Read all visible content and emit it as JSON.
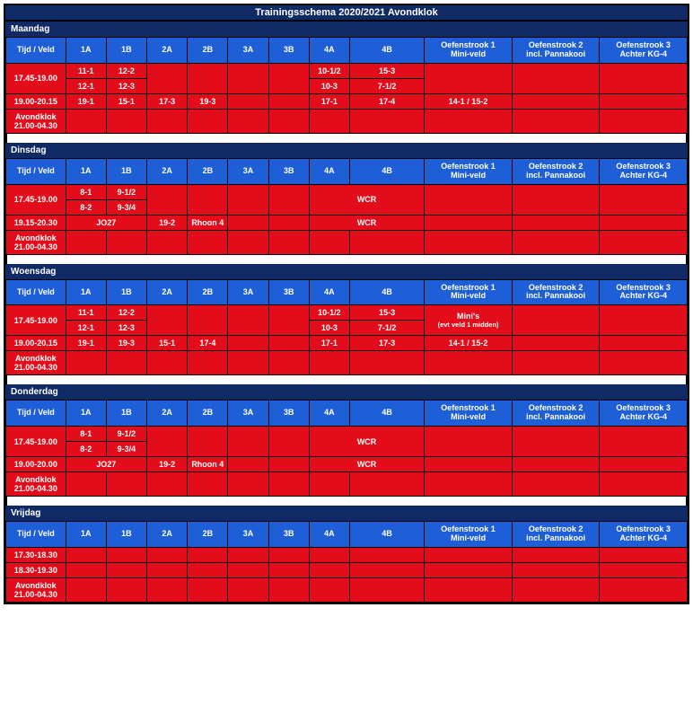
{
  "title": "Trainingsschema 2020/2021 Avondklok",
  "columns": [
    "Tijd / Veld",
    "1A",
    "1B",
    "2A",
    "2B",
    "3A",
    "3B",
    "4A",
    "4B",
    "Oefenstrook 1\nMini-veld",
    "Oefenstrook 2\nincl. Pannakooi",
    "Oefenstrook 3\nAchter KG-4"
  ],
  "days": [
    {
      "name": "Maandag",
      "rows": [
        {
          "type": "split",
          "label": "17.45-19.00",
          "top": {
            "1A": "11-1",
            "1B": "12-2",
            "4A": "10-1/2",
            "4B": "15-3"
          },
          "bot": {
            "1A": "12-1",
            "1B": "12-3",
            "4A": "10-3",
            "4B": "7-1/2"
          }
        },
        {
          "type": "single",
          "label": "19.00-20.15",
          "cells": {
            "1A": "19-1",
            "1B": "15-1",
            "2A": "17-3",
            "2B": "19-3",
            "4A": "17-1",
            "4B": "17-4",
            "O1": "14-1 / 15-2"
          }
        },
        {
          "type": "single",
          "label": "Avondklok\n21.00-04.30",
          "cells": {}
        }
      ]
    },
    {
      "name": "Dinsdag",
      "rows": [
        {
          "type": "split",
          "label": "17.45-19.00",
          "top": {
            "1A": "8-1",
            "1B": "9-1/2"
          },
          "bot": {
            "1A": "8-2",
            "1B": "9-3/4"
          },
          "mergeFull": {
            "4": "WCR"
          }
        },
        {
          "type": "single",
          "label": "19.15-20.30",
          "merge": {
            "1": "JO27"
          },
          "cells": {
            "2A": "19-2",
            "2B": "Rhoon 4"
          },
          "mergeFull": {
            "4": "WCR"
          }
        },
        {
          "type": "single",
          "label": "Avondklok\n21.00-04.30",
          "cells": {}
        }
      ]
    },
    {
      "name": "Woensdag",
      "rows": [
        {
          "type": "split",
          "label": "17.45-19.00",
          "top": {
            "1A": "11-1",
            "1B": "12-2",
            "4A": "10-1/2",
            "4B": "15-3"
          },
          "bot": {
            "1A": "12-1",
            "1B": "12-3",
            "4A": "10-3",
            "4B": "7-1/2"
          },
          "full": {
            "O1": "Mini's",
            "O1sub": "(evt veld 1 midden)"
          }
        },
        {
          "type": "single",
          "label": "19.00-20.15",
          "cells": {
            "1A": "19-1",
            "1B": "19-3",
            "2A": "15-1",
            "2B": "17-4",
            "4A": "17-1",
            "4B": "17-3",
            "O1": "14-1 / 15-2"
          }
        },
        {
          "type": "single",
          "label": "Avondklok\n21.00-04.30",
          "cells": {}
        }
      ]
    },
    {
      "name": "Donderdag",
      "rows": [
        {
          "type": "split",
          "label": "17.45-19.00",
          "top": {
            "1A": "8-1",
            "1B": "9-1/2"
          },
          "bot": {
            "1A": "8-2",
            "1B": "9-3/4"
          },
          "mergeFull": {
            "4": "WCR"
          }
        },
        {
          "type": "single",
          "label": "19.00-20.00",
          "merge": {
            "1": "JO27"
          },
          "cells": {
            "2A": "19-2",
            "2B": "Rhoon 4"
          },
          "mergeFull": {
            "4": "WCR"
          }
        },
        {
          "type": "single",
          "label": "Avondklok\n21.00-04.30",
          "cells": {}
        }
      ]
    },
    {
      "name": "Vrijdag",
      "rows": [
        {
          "type": "single",
          "label": "17.30-18.30",
          "cells": {}
        },
        {
          "type": "single",
          "label": "18.30-19.30",
          "cells": {}
        },
        {
          "type": "single",
          "label": "Avondklok\n21.00-04.30",
          "cells": {}
        }
      ]
    }
  ],
  "style": {
    "header_bg": "#1e5fd8",
    "dayheader_bg": "#102a66",
    "cell_bg": "#e20c1a",
    "text": "#ffffff",
    "border": "#000000",
    "font": "Arial",
    "header_fontsize": 9,
    "cell_fontsize": 9,
    "title_fontsize": 11
  }
}
